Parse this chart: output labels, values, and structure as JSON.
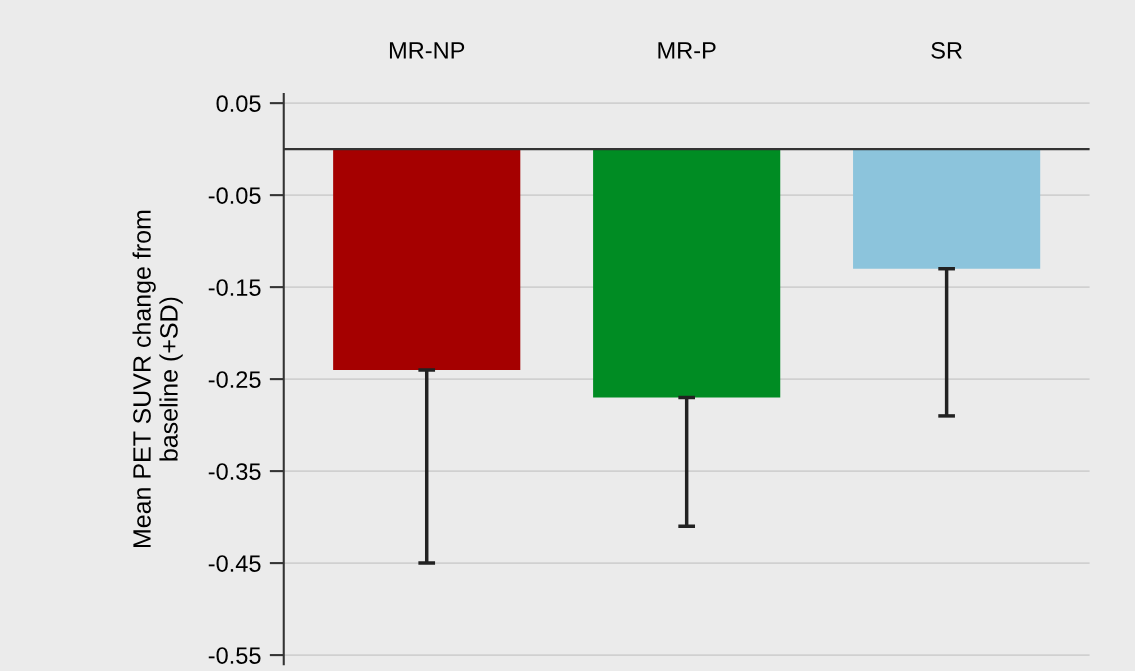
{
  "chart_data": {
    "type": "bar",
    "ylabel": "Mean PET SUVR change from\nbaseline (+SD)",
    "categories": [
      "MR-NP",
      "MR-P",
      "SR"
    ],
    "values": [
      -0.24,
      -0.27,
      -0.13
    ],
    "colors": [
      "#a50000",
      "#008c23",
      "#8cc4dc"
    ],
    "errors": [
      [
        -0.45,
        -0.24
      ],
      [
        -0.41,
        -0.27
      ],
      [
        -0.29,
        -0.13
      ]
    ],
    "ylim": [
      -0.56,
      0.06
    ],
    "yticks": [
      0.05,
      -0.05,
      -0.15,
      -0.25,
      -0.35,
      -0.45,
      -0.55
    ],
    "ref_lines": [
      {
        "axis": "y",
        "value": 0,
        "color": "#333333"
      }
    ],
    "grid": "y"
  }
}
